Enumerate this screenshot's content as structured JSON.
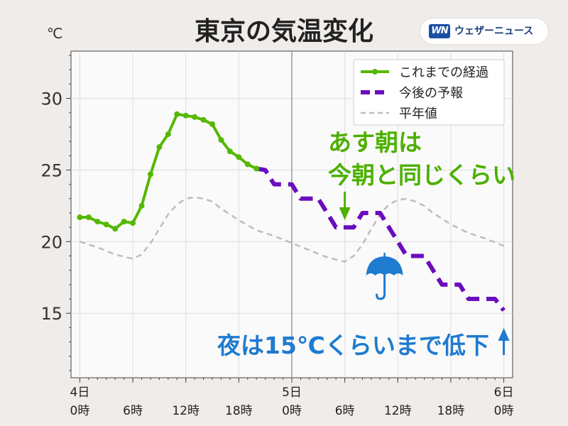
{
  "logo": {
    "mark": "WN",
    "text": "ウェザーニュース"
  },
  "colors": {
    "observed": "#55b800",
    "forecast": "#6a0dbe",
    "normal": "#bdbdbd",
    "annotation_green": "#4cb000",
    "annotation_blue": "#1e7bd0",
    "plot_bg": "#fbfafa",
    "page_bg": "#efecea"
  },
  "chart_data": {
    "type": "line",
    "title": "東京の気温変化",
    "ylabel": "℃",
    "xlim": [
      -1,
      49
    ],
    "ylim": [
      10.5,
      33.3
    ],
    "yticks": [
      15,
      20,
      25,
      30
    ],
    "grid": true,
    "legend_position": "top-right",
    "x_ticks": [
      {
        "x": 0,
        "day": "4日",
        "time": "0時"
      },
      {
        "x": 6,
        "day": "",
        "time": "6時"
      },
      {
        "x": 12,
        "day": "",
        "time": "12時"
      },
      {
        "x": 18,
        "day": "",
        "time": "18時"
      },
      {
        "x": 24,
        "day": "5日",
        "time": "0時"
      },
      {
        "x": 30,
        "day": "",
        "time": "6時"
      },
      {
        "x": 36,
        "day": "",
        "time": "12時"
      },
      {
        "x": 42,
        "day": "",
        "time": "18時"
      },
      {
        "x": 48,
        "day": "6日",
        "time": "0時"
      }
    ],
    "series": [
      {
        "name": "これまでの経過",
        "style": "solid-markers",
        "x": [
          0,
          1,
          2,
          3,
          4,
          5,
          6,
          7,
          8,
          9,
          10,
          11,
          12,
          13,
          14,
          15,
          16,
          17,
          18,
          19,
          20
        ],
        "y": [
          21.7,
          21.7,
          21.4,
          21.2,
          20.9,
          21.4,
          21.3,
          22.5,
          24.7,
          26.6,
          27.5,
          28.9,
          28.8,
          28.7,
          28.5,
          28.2,
          27.1,
          26.3,
          25.9,
          25.4,
          25.1
        ]
      },
      {
        "name": "今後の予報",
        "style": "dashed-step",
        "x": [
          20,
          21,
          22,
          23,
          24,
          25,
          26,
          27,
          28,
          29,
          30,
          31,
          32,
          33,
          34,
          35,
          36,
          37,
          38,
          39,
          40,
          41,
          42,
          43,
          44,
          45,
          46,
          47,
          48
        ],
        "y": [
          25.1,
          25,
          24,
          24,
          24,
          23,
          23,
          23,
          22,
          21,
          21,
          21,
          22,
          22,
          22,
          21,
          20,
          19,
          19,
          19,
          18,
          17,
          17,
          17,
          16,
          16,
          16,
          16,
          15.2
        ]
      },
      {
        "name": "平年値",
        "style": "dashed-gray",
        "x": [
          0,
          2,
          4,
          6,
          7,
          8,
          9,
          10,
          11,
          12,
          13,
          14,
          15,
          16,
          18,
          20,
          22,
          24,
          26,
          28,
          30,
          31,
          32,
          33,
          34,
          35,
          36,
          37,
          38,
          39,
          40,
          42,
          44,
          46,
          48
        ],
        "y": [
          20,
          19.6,
          19.1,
          18.8,
          19.1,
          19.9,
          20.9,
          21.9,
          22.6,
          23.0,
          23.1,
          23.0,
          22.8,
          22.3,
          21.5,
          20.8,
          20.4,
          19.9,
          19.4,
          18.9,
          18.6,
          19.0,
          19.8,
          20.9,
          21.9,
          22.6,
          22.9,
          23.0,
          22.8,
          22.5,
          22.0,
          21.2,
          20.6,
          20.2,
          19.7
        ]
      }
    ],
    "annotations": [
      {
        "text_lines": [
          "あす朝は",
          "今朝と同じくらい"
        ],
        "color_key": "annotation_green",
        "arrow_x": 30
      },
      {
        "text_lines": [
          "夜は15℃くらいまで低下"
        ],
        "color_key": "annotation_blue",
        "arrow_x": 48
      }
    ],
    "umbrella_icon": {
      "name": "umbrella-icon",
      "x": 34.5
    }
  }
}
